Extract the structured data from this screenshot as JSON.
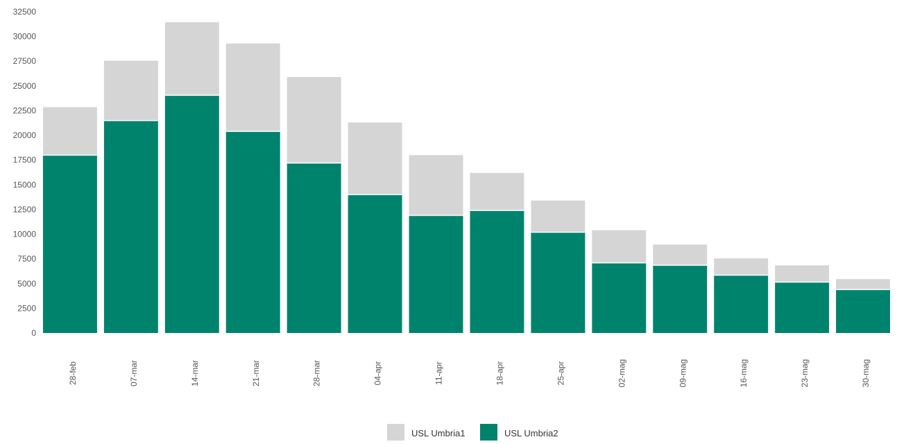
{
  "chart_data": {
    "type": "bar",
    "stacked": true,
    "categories": [
      "28-feb",
      "07-mar",
      "14-mar",
      "21-mar",
      "28-mar",
      "04-apr",
      "11-apr",
      "18-apr",
      "25-apr",
      "02-mag",
      "09-mag",
      "16-mag",
      "23-mag",
      "30-mag"
    ],
    "series": [
      {
        "name": "USL Umbria2",
        "color": "#00836D",
        "values": [
          18000,
          21500,
          24050,
          20400,
          17200,
          14000,
          11900,
          12400,
          10200,
          7100,
          6850,
          5850,
          5150,
          4400
        ]
      },
      {
        "name": "USL Umbria1",
        "color": "#D5D5D5",
        "values": [
          4850,
          6050,
          7400,
          8900,
          8700,
          7300,
          6100,
          3800,
          3200,
          3300,
          2100,
          1700,
          1700,
          1050
        ]
      }
    ],
    "ylim": [
      0,
      32500
    ],
    "yticks": [
      "0",
      "2500",
      "5000",
      "7500",
      "10000",
      "12500",
      "15000",
      "17500",
      "20000",
      "22500",
      "25000",
      "27500",
      "30000",
      "32500"
    ],
    "grid": false,
    "legend": {
      "position": "bottom",
      "items": [
        {
          "label": "USL Umbria1",
          "color": "#D5D5D5"
        },
        {
          "label": "USL Umbria2",
          "color": "#00836D"
        }
      ]
    }
  }
}
